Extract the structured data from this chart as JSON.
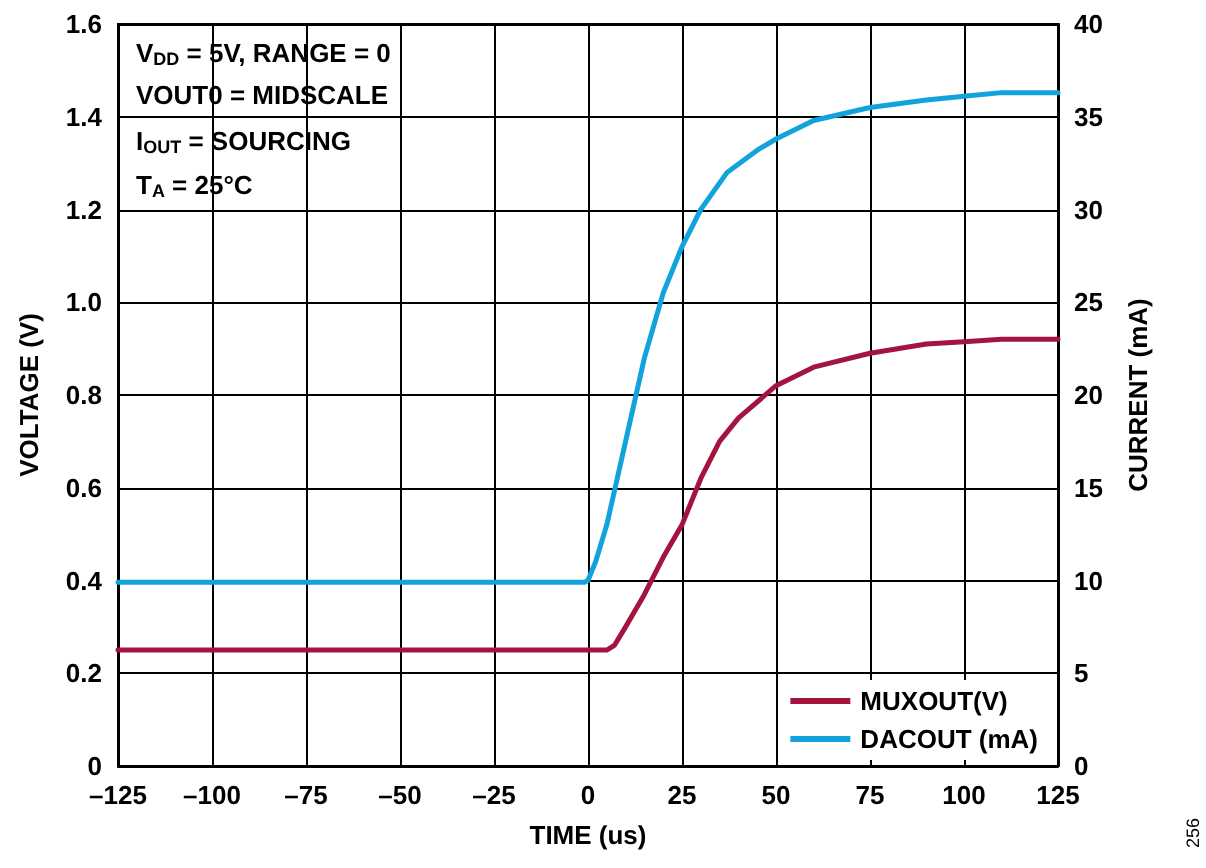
{
  "chart_data": {
    "type": "line",
    "xlabel": "TIME (us)",
    "ylabel": "VOLTAGE (V)",
    "y2label": "CURRENT (mA)",
    "xlim": [
      -125,
      125
    ],
    "xticks": [
      {
        "value": -125,
        "label": "–125"
      },
      {
        "value": -100,
        "label": "–100"
      },
      {
        "value": -75,
        "label": "–75"
      },
      {
        "value": -50,
        "label": "–50"
      },
      {
        "value": -25,
        "label": "–25"
      },
      0,
      25,
      50,
      75,
      100,
      125
    ],
    "ylim": [
      0,
      1.6
    ],
    "yticks": [
      0,
      {
        "value": 0.2,
        "label": "0.2"
      },
      {
        "value": 0.4,
        "label": "0.4"
      },
      {
        "value": 0.6,
        "label": "0.6"
      },
      {
        "value": 0.8,
        "label": "0.8"
      },
      {
        "value": 1,
        "label": "1.0"
      },
      {
        "value": 1.2,
        "label": "1.2"
      },
      {
        "value": 1.4,
        "label": "1.4"
      },
      {
        "value": 1.6,
        "label": "1.6"
      }
    ],
    "y2lim": [
      0,
      40
    ],
    "y2ticks": [
      0,
      5,
      10,
      15,
      20,
      25,
      30,
      35,
      40
    ],
    "grid": true,
    "legend": "bottom right",
    "line_style": "solid",
    "marker": "none",
    "series": [
      {
        "name": "MUXOUT(V)",
        "color": "#a3153f",
        "axis": "y",
        "x": [
          -125,
          -75,
          -25,
          0,
          5,
          7,
          10,
          15,
          20,
          25,
          30,
          35,
          40,
          50,
          60,
          75,
          90,
          100,
          110,
          125
        ],
        "values": [
          0.25,
          0.25,
          0.25,
          0.25,
          0.25,
          0.26,
          0.3,
          0.37,
          0.45,
          0.52,
          0.62,
          0.7,
          0.75,
          0.82,
          0.86,
          0.89,
          0.91,
          0.915,
          0.92,
          0.92
        ]
      },
      {
        "name": "DACOUT (mA)",
        "color": "#12a3dc",
        "axis": "y2",
        "x": [
          -125,
          -75,
          -25,
          -1,
          0,
          2,
          5,
          10,
          15,
          20,
          25,
          30,
          37,
          45,
          50,
          60,
          75,
          90,
          100,
          110,
          125
        ],
        "values": [
          9.9,
          9.9,
          9.9,
          9.9,
          10,
          11,
          13,
          17.5,
          22,
          25.5,
          28,
          30,
          32,
          33.2,
          33.8,
          34.8,
          35.5,
          35.9,
          36.1,
          36.3,
          36.3
        ]
      }
    ],
    "annotations": [
      "V$_{DD}$ = 5V, RANGE = 0",
      "VOUT0 = MIDSCALE",
      "I$_{OUT}$ = SOURCING",
      "T$_{A}$ = 25°C",
      "256"
    ]
  }
}
